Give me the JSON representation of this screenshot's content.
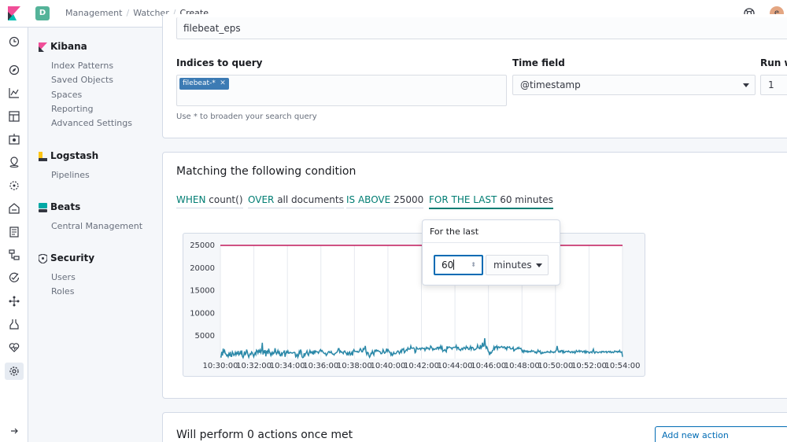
{
  "topbar": {
    "space_initial": "D",
    "breadcrumbs": [
      "Management",
      "Watcher",
      "Create"
    ],
    "user_initial": "e"
  },
  "icon_nav": [
    "clock-icon",
    "discover-icon",
    "visualize-icon",
    "dashboard-icon",
    "canvas-icon",
    "maps-icon",
    "ml-icon",
    "infrastructure-icon",
    "logs-icon",
    "apm-icon",
    "uptime-icon",
    "graph-icon",
    "dev-tools-icon",
    "monitoring-icon",
    "management-icon",
    "collapse-icon"
  ],
  "sidebar": {
    "kibana": {
      "title": "Kibana",
      "items": [
        "Index Patterns",
        "Saved Objects",
        "Spaces",
        "Reporting",
        "Advanced Settings"
      ]
    },
    "logstash": {
      "title": "Logstash",
      "items": [
        "Pipelines"
      ]
    },
    "beats": {
      "title": "Beats",
      "items": [
        "Central Management"
      ]
    },
    "security": {
      "title": "Security",
      "items": [
        "Users",
        "Roles"
      ]
    }
  },
  "form": {
    "name_value": "filebeat_eps",
    "indices_label": "Indices to query",
    "index_chip": "filebeat-*",
    "indices_help": "Use * to broaden your search query",
    "time_field_label": "Time field",
    "time_field_value": "@timestamp",
    "run_label": "Run w",
    "run_value": "1"
  },
  "condition": {
    "title": "Matching the following condition",
    "when_key": "WHEN",
    "when_val": "count()",
    "over_key": "OVER",
    "over_val": "all documents",
    "above_key": "IS ABOVE",
    "above_val": "25000",
    "last_key": "FOR THE LAST",
    "last_val": "60 minutes"
  },
  "popover": {
    "title": "For the last",
    "number": "60",
    "unit": "minutes"
  },
  "actions": {
    "title": "Will perform 0 actions once met",
    "add_label": "Add new action"
  },
  "colors": {
    "threshold": "#c2185b",
    "series": "#2a88a8",
    "accent": "#017d73"
  },
  "chart_data": {
    "type": "line",
    "ylim": [
      0,
      25000
    ],
    "y_ticks": [
      "25000",
      "20000",
      "15000",
      "10000",
      "5000"
    ],
    "x_tick_labels": [
      "10:30:00",
      "10:32:00",
      "10:34:00",
      "10:36:00",
      "10:38:00",
      "10:40:00",
      "10:42:00",
      "10:44:00",
      "10:46:00",
      "10:48:00",
      "10:50:00",
      "10:52:00",
      "10:54:00"
    ],
    "threshold": 25000,
    "series": [
      {
        "values": [
          400,
          350,
          1500,
          700,
          2200,
          1500,
          1800,
          1100,
          1000,
          600,
          800,
          400,
          1100,
          600,
          1500,
          500,
          500,
          1500,
          1100,
          700,
          900,
          1400,
          800,
          1300,
          1100,
          1700,
          800,
          1000,
          1500,
          1100,
          1800,
          500,
          200,
          700,
          1600,
          900,
          1100,
          2000,
          1500,
          800,
          300,
          800,
          1100,
          900,
          1500,
          1300,
          900,
          400,
          900,
          1300,
          900,
          1900,
          1700,
          1200,
          2000,
          1300,
          1900,
          1300,
          1900,
          3500,
          900,
          1800,
          1200,
          1900,
          500,
          1600,
          1700,
          1000,
          2200,
          1500,
          1200,
          700,
          1300,
          900,
          1400,
          1100,
          1300,
          2300,
          1500,
          1000,
          1300,
          1800,
          1200,
          1500,
          700,
          600,
          1200,
          800,
          1300,
          1400,
          1800,
          400,
          1100,
          1600,
          1300,
          1700,
          1200,
          1200,
          1400,
          1300,
          1300,
          1200,
          1300,
          1300,
          1400,
          1300,
          400,
          600,
          1100,
          300,
          700,
          1600,
          1200,
          2000,
          1500,
          400,
          200,
          300,
          1200,
          700,
          1100,
          1300,
          1700,
          1000,
          700,
          1300,
          1800,
          1300,
          1500,
          1200,
          1500,
          900,
          1800,
          1300,
          1700,
          1500,
          1500,
          1500,
          1200,
          1500,
          1800,
          2000,
          1600,
          1800,
          1600,
          1300,
          1200,
          1100,
          1200,
          700,
          900,
          1200,
          1500,
          1600,
          1300,
          1300,
          1600,
          1200,
          1000,
          1000,
          800,
          1100,
          1200,
          1300,
          1400,
          1700,
          2200,
          2200,
          1400,
          1700,
          1400,
          1500,
          1300,
          1100,
          1600,
          1700,
          1400,
          1200,
          900,
          1300,
          700,
          1300,
          1500,
          800,
          1000,
          1400,
          700,
          1700,
          2000,
          1600,
          1600,
          1600,
          1500,
          1600,
          1400,
          1500,
          1900,
          2200,
          1900,
          1500,
          1500,
          2200,
          2000,
          2300,
          2800,
          1500,
          900,
          1400,
          1300,
          700,
          300,
          600,
          1200,
          1100,
          1700,
          1200,
          800,
          1700,
          1900,
          1600,
          1900,
          1700,
          1800,
          1600,
          1600,
          1500,
          1100,
          1100,
          1300,
          2000,
          1600,
          1200,
          1300,
          1600,
          2200,
          1600,
          2000,
          1700,
          1400,
          1400,
          800,
          1200,
          700,
          900,
          1400,
          1100,
          1100,
          1100,
          1300,
          1600,
          1700,
          1500,
          1100,
          1400,
          1800,
          1400,
          2100,
          2000,
          2200,
          1300,
          1500,
          1800,
          2000,
          1800,
          2400,
          2100,
          2100,
          2100,
          2800,
          2300,
          2300,
          2300,
          2400,
          2200,
          1300,
          1500,
          2500,
          2300,
          2100,
          2100,
          2200,
          2300,
          2000,
          2300,
          2400,
          2200,
          2200,
          2300,
          1800,
          2200,
          2500,
          2200,
          2400,
          2300,
          2000,
          2200,
          2800,
          2600,
          2300,
          1900,
          2200,
          2000,
          2100,
          2200,
          2100,
          2500,
          2500,
          2100,
          2500,
          2300,
          2800,
          2200,
          2600,
          1600,
          1800,
          1800,
          2000,
          1700,
          1500,
          2700,
          2300,
          2500,
          2600,
          2500,
          2400,
          2400,
          2100,
          2400,
          2500,
          2500,
          2500,
          2500,
          2900,
          2100,
          2500,
          2500,
          2000,
          2000,
          1800,
          2100,
          2300,
          2000,
          2300,
          2500,
          2300,
          2100,
          2700,
          2400,
          2500,
          2100,
          2000,
          2300,
          2700,
          2000,
          2500,
          2500,
          2300,
          1900,
          2000,
          2000,
          2200,
          2300,
          3000,
          2500,
          2300,
          2200,
          3000,
          2300,
          2600,
          3500,
          2700,
          2800,
          4500,
          2900,
          2300,
          2600,
          2200,
          1600,
          1400,
          800,
          1400,
          1200,
          1400,
          1800,
          1900,
          2600,
          2100,
          2600,
          2500,
          2800,
          2100,
          2600,
          2600,
          2400,
          2500,
          2600,
          2700,
          2500,
          2400,
          2600,
          2600,
          2200,
          2400,
          2000,
          2600,
          2500,
          2500,
          2600,
          2200,
          2100,
          2200,
          2200,
          2500,
          1700,
          1800,
          2100,
          2100,
          2100,
          2400,
          2200,
          2500,
          2200,
          2200,
          2300,
          1900,
          1500,
          1800,
          1400,
          1800,
          1600,
          1700,
          1500,
          1700,
          1400,
          1600,
          1500,
          1600,
          1500,
          1800,
          1600,
          1700,
          1700,
          1500,
          1300,
          1500,
          1200,
          1400,
          1900,
          1600,
          1500,
          1700,
          1100,
          1100,
          1400,
          1200,
          1300,
          1400,
          1300,
          1400,
          1400,
          1600,
          1400,
          1500,
          1400,
          1300,
          1700,
          1500,
          1400,
          1500,
          1300,
          1500,
          1400,
          1700,
          1900,
          2800,
          2000,
          1500,
          1400,
          1700,
          1500,
          1800,
          1800,
          1300,
          1700,
          1300,
          1400,
          1600,
          1600,
          1600,
          1500,
          1700,
          1500,
          1500,
          1300,
          1500,
          1600,
          1300,
          1400,
          1600,
          1200,
          1400,
          1800,
          1600,
          1500,
          1600,
          1800,
          1500,
          1700,
          1700,
          1600,
          1400,
          1600,
          1700,
          1300,
          1700,
          1300,
          1600,
          1500,
          1500,
          1200,
          1300,
          1500,
          1500,
          1300,
          1700,
          2100,
          1400,
          1200,
          1500,
          1500,
          1500,
          1300,
          1300,
          1400,
          1500,
          1500,
          1300,
          1600,
          1500,
          1600,
          1400,
          1500,
          1500,
          1600,
          1300,
          1500,
          1500,
          1600,
          1400,
          1600,
          1300,
          1400,
          1500,
          1300,
          1400,
          1700,
          1600,
          1500,
          1600,
          1400,
          1600,
          1500,
          1800,
          1400,
          1400,
          1500,
          400
        ]
      }
    ]
  }
}
